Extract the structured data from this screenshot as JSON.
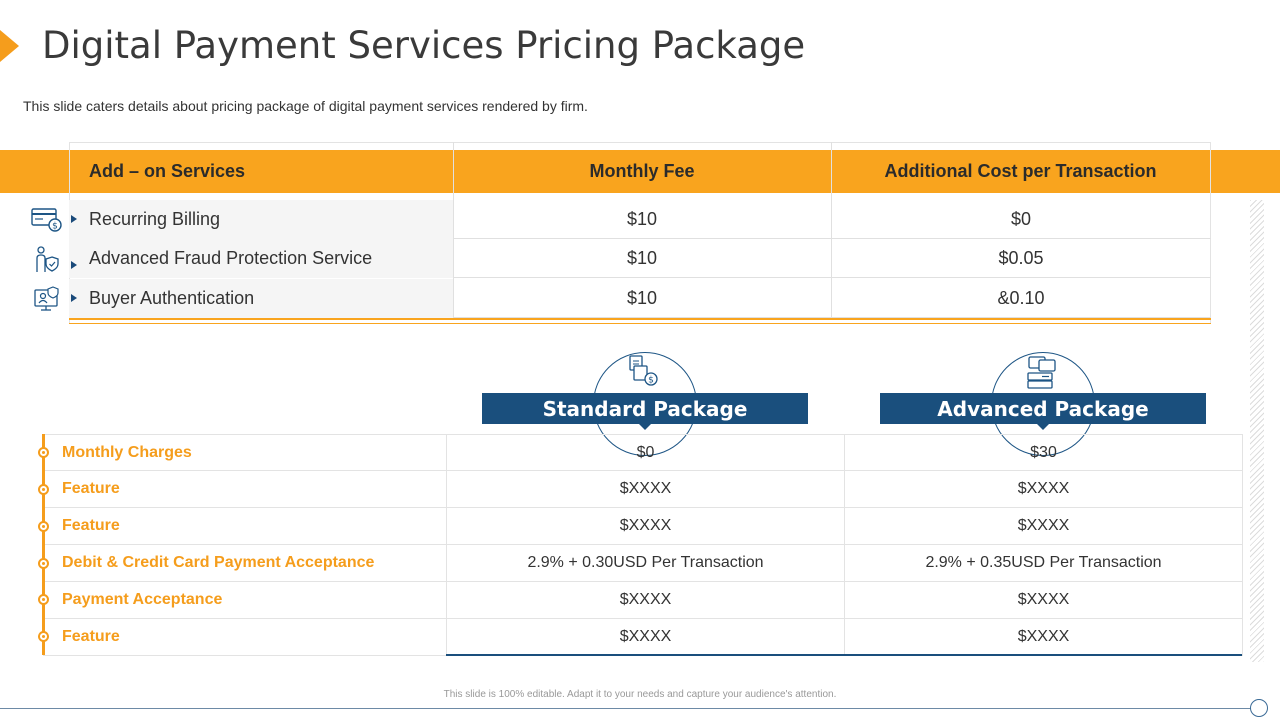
{
  "header": {
    "title": "Digital Payment Services Pricing Package",
    "subtitle": "This slide caters details about pricing package of digital payment services rendered by firm."
  },
  "addon_table": {
    "columns": [
      "Add – on Services",
      "Monthly Fee",
      "Additional Cost per Transaction"
    ],
    "rows": [
      {
        "service": "Recurring Billing",
        "fee": "$10",
        "cost": "$0",
        "icon": "billing-icon"
      },
      {
        "service": "Advanced Fraud Protection Service",
        "fee": "$10",
        "cost": "$0.05",
        "icon": "fraud-protection-icon"
      },
      {
        "service": "Buyer Authentication",
        "fee": "$10",
        "cost": "&0.10",
        "icon": "buyer-authentication-icon"
      }
    ]
  },
  "packages": {
    "standard_label": "Standard Package",
    "advanced_label": "Advanced Package",
    "rows": [
      {
        "label": "Monthly  Charges",
        "standard": "$0",
        "advanced": "$30"
      },
      {
        "label": "Feature",
        "standard": "$XXXX",
        "advanced": "$XXXX"
      },
      {
        "label": "Feature",
        "standard": "$XXXX",
        "advanced": "$XXXX"
      },
      {
        "label": "Debit  &  Credit  Card  Payment  Acceptance",
        "standard": "2.9%  + 0.30USD  Per Transaction",
        "advanced": "2.9%  + 0.35USD  Per Transaction"
      },
      {
        "label": "Payment  Acceptance",
        "standard": "$XXXX",
        "advanced": "$XXXX"
      },
      {
        "label": "Feature",
        "standard": "$XXXX",
        "advanced": "$XXXX"
      }
    ]
  },
  "footer": {
    "note": "This slide is 100% editable.  Adapt it to your needs and capture your audience's attention."
  },
  "colors": {
    "orange": "#f9a41e",
    "navy": "#1a4f7d"
  }
}
